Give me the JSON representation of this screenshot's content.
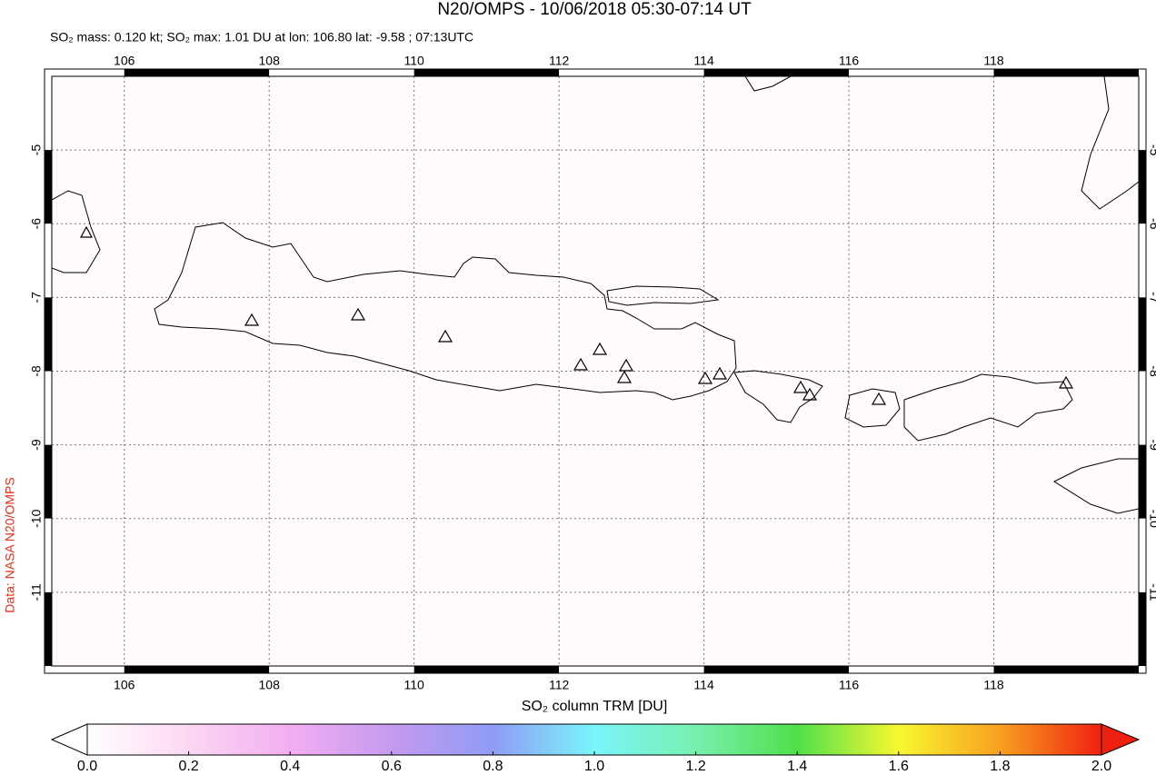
{
  "chart_data": {
    "type": "map",
    "title": "N20/OMPS - 10/06/2018 05:30-07:14 UT",
    "subtitle": "SO₂ mass: 0.120 kt; SO₂ max: 1.01 DU at lon: 106.80 lat: -9.58 ; 07:13UTC",
    "xlim": [
      105,
      120
    ],
    "ylim": [
      -12,
      -4
    ],
    "xticks": [
      106,
      108,
      110,
      112,
      114,
      116,
      118
    ],
    "yticks": [
      -5,
      -6,
      -7,
      -8,
      -9,
      -10,
      -11
    ],
    "colorbar_label": "SO₂ column TRM [DU]",
    "colorbar_lim": [
      0,
      2
    ],
    "colorbar_ticks": [
      {
        "value": 0,
        "label": "0.0"
      },
      {
        "value": 0.2,
        "label": "0.2"
      },
      {
        "value": 0.4,
        "label": "0.4"
      },
      {
        "value": 0.6,
        "label": "0.6"
      },
      {
        "value": 0.8,
        "label": "0.8"
      },
      {
        "value": 1,
        "label": "1.0"
      },
      {
        "value": 1.2,
        "label": "1.2"
      },
      {
        "value": 1.4,
        "label": "1.4"
      },
      {
        "value": 1.6,
        "label": "1.6"
      },
      {
        "value": 1.8,
        "label": "1.8"
      },
      {
        "value": 2,
        "label": "2.0"
      }
    ],
    "credit": "Data: NASA N20/OMPS",
    "grid": true
  }
}
